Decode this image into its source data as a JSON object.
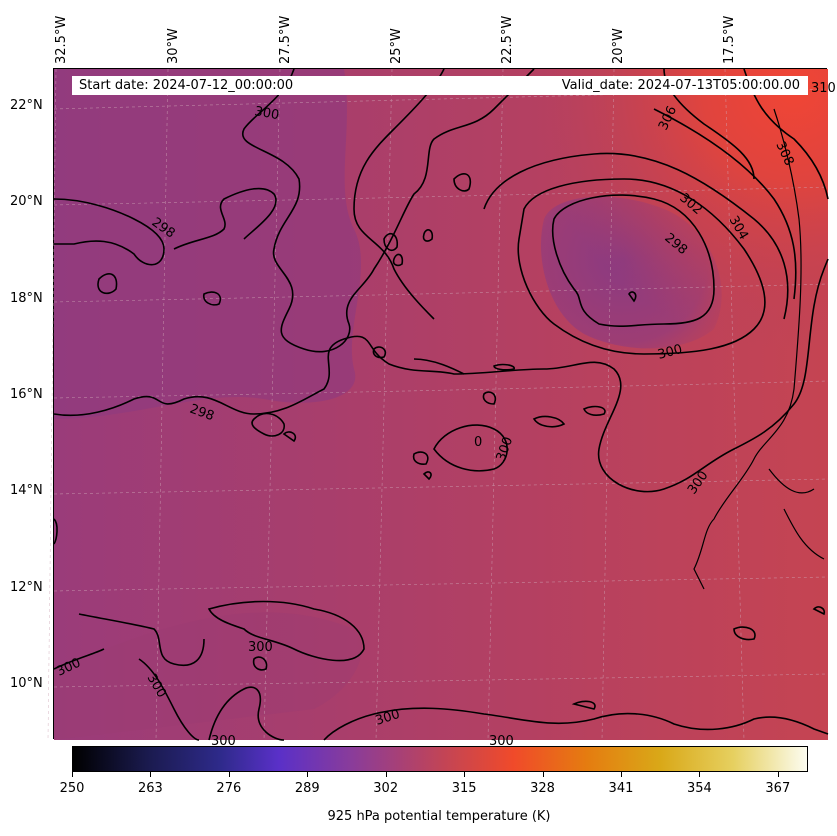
{
  "lon_labels": [
    "32.5°W",
    "30°W",
    "27.5°W",
    "25°W",
    "22.5°W",
    "20°W",
    "17.5°W"
  ],
  "lat_labels": [
    "22°N",
    "20°N",
    "18°N",
    "16°N",
    "14°N",
    "12°N",
    "10°N"
  ],
  "start_date": "Start date: 2024-07-12_00:00:00",
  "valid_date": "Valid_date: 2024-07-13T05:00:00.00",
  "colorbar": {
    "ticks": [
      "250",
      "263",
      "276",
      "289",
      "302",
      "315",
      "328",
      "341",
      "354",
      "367"
    ],
    "label": "925 hPa potential temperature (K)",
    "colormap": "CMRmap",
    "min": 250,
    "max": 372
  },
  "contour_labels": [
    "300",
    "298",
    "306",
    "308",
    "302",
    "304",
    "298",
    "300",
    "298",
    "300",
    "300",
    "300",
    "300",
    "300",
    "300",
    "300",
    "300",
    "0",
    "310"
  ],
  "colors": {
    "background_field": "#b8415a",
    "cool_field": "#8a3c80",
    "warm_field": "#e84a3a",
    "contour_line": "#000000",
    "gridline": "#c8a0b0"
  }
}
